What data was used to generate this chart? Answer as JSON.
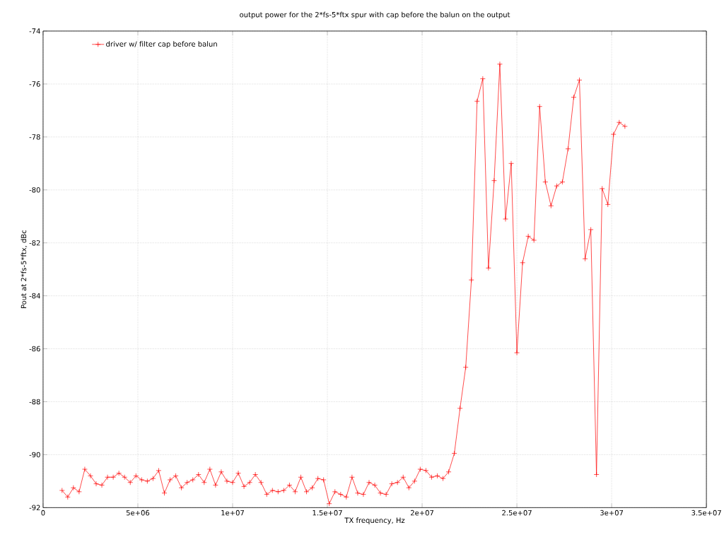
{
  "chart_data": {
    "type": "line",
    "title": "output power for the 2*fs-5*ftx spur with cap before the balun on the output",
    "xlabel": "TX frequency, Hz",
    "ylabel": "Pout at 2*fs-5*ftx, dBc",
    "x": [
      1000000,
      1300000,
      1600000,
      1900000,
      2200000,
      2500000,
      2800000,
      3100000,
      3400000,
      3700000,
      4000000,
      4300000,
      4600000,
      4900000,
      5200000,
      5500000,
      5800000,
      6100000,
      6400000,
      6700000,
      7000000,
      7300000,
      7600000,
      7900000,
      8200000,
      8500000,
      8800000,
      9100000,
      9400000,
      9700000,
      10000000,
      10300000,
      10600000,
      10900000,
      11200000,
      11500000,
      11800000,
      12100000,
      12400000,
      12700000,
      13000000,
      13300000,
      13600000,
      13900000,
      14200000,
      14500000,
      14800000,
      15100000,
      15400000,
      15700000,
      16000000,
      16300000,
      16600000,
      16900000,
      17200000,
      17500000,
      17800000,
      18100000,
      18400000,
      18700000,
      19000000,
      19300000,
      19600000,
      19900000,
      20200000,
      20500000,
      20800000,
      21100000,
      21400000,
      21700000,
      22000000,
      22300000,
      22600000,
      22900000,
      23200000,
      23500000,
      23800000,
      24100000,
      24400000,
      24700000,
      25000000,
      25300000,
      25600000,
      25900000,
      26200000,
      26500000,
      26800000,
      27100000,
      27400000,
      27700000,
      28000000,
      28300000,
      28600000,
      28900000,
      29200000,
      29500000,
      29800000,
      30100000,
      30400000,
      30700000
    ],
    "series": [
      {
        "name": "driver w/ filter cap before balun",
        "color": "#ff0000",
        "marker": "cross",
        "line_style": "solid",
        "values": [
          -91.35,
          -91.6,
          -91.25,
          -91.4,
          -90.55,
          -90.8,
          -91.1,
          -91.15,
          -90.85,
          -90.85,
          -90.7,
          -90.85,
          -91.05,
          -90.8,
          -90.95,
          -91.0,
          -90.9,
          -90.6,
          -91.45,
          -90.95,
          -90.8,
          -91.25,
          -91.05,
          -90.95,
          -90.75,
          -91.05,
          -90.55,
          -91.15,
          -90.65,
          -91.0,
          -91.05,
          -90.7,
          -91.2,
          -91.05,
          -90.75,
          -91.05,
          -91.5,
          -91.35,
          -91.4,
          -91.35,
          -91.15,
          -91.4,
          -90.85,
          -91.4,
          -91.25,
          -90.9,
          -90.95,
          -91.85,
          -91.4,
          -91.5,
          -91.6,
          -90.85,
          -91.45,
          -91.5,
          -91.05,
          -91.15,
          -91.45,
          -91.5,
          -91.1,
          -91.05,
          -90.85,
          -91.25,
          -91.0,
          -90.55,
          -90.6,
          -90.85,
          -90.8,
          -90.9,
          -90.65,
          -89.95,
          -88.25,
          -86.7,
          -83.4,
          -76.65,
          -75.8,
          -82.95,
          -79.65,
          -75.25,
          -81.1,
          -79.0,
          -86.15,
          -82.75,
          -81.75,
          -81.9,
          -76.85,
          -79.7,
          -80.6,
          -79.85,
          -79.7,
          -78.45,
          -76.5,
          -75.85,
          -82.6,
          -81.5,
          -90.75,
          -79.95,
          -80.55,
          -77.9,
          -77.45,
          -77.6
        ]
      }
    ],
    "xlim": [
      0,
      35000000
    ],
    "xticks": [
      0,
      {
        "value": 5000000,
        "label": "5e+06"
      },
      {
        "value": 10000000,
        "label": "1e+07"
      },
      {
        "value": 15000000,
        "label": "1.5e+07"
      },
      {
        "value": 20000000,
        "label": "2e+07"
      },
      {
        "value": 25000000,
        "label": "2.5e+07"
      },
      {
        "value": 30000000,
        "label": "3e+07"
      },
      {
        "value": 35000000,
        "label": "3.5e+07"
      }
    ],
    "ylim": [
      -92,
      -74
    ],
    "yticks": [
      -92,
      -90,
      -88,
      -86,
      -84,
      -82,
      -80,
      -78,
      -76,
      -74
    ],
    "grid": true,
    "legend": "top left"
  }
}
